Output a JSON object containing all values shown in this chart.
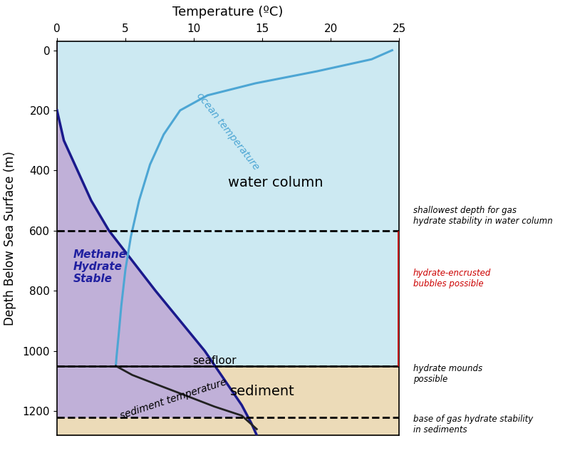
{
  "title": "Temperature (ºC)",
  "ylabel": "Depth Below Sea Surface (m)",
  "xlim": [
    0,
    25
  ],
  "ylim": [
    1280,
    -30
  ],
  "xticks": [
    0,
    5,
    10,
    15,
    20,
    25
  ],
  "yticks": [
    0,
    200,
    400,
    600,
    800,
    1000,
    1200
  ],
  "seafloor_depth": 1050,
  "hydrate_stability_depth_water": 600,
  "sediment_base_hydrate_depth": 1220,
  "water_column_color": "#cce9f2",
  "sediment_color": "#ecdbb8",
  "hydrate_stable_color": "#c0b0d8",
  "ocean_temp_color": "#4da6d4",
  "hydrate_curve_color": "#1a1a8c",
  "sediment_temp_color": "#222222",
  "red_line_color": "#cc0000",
  "hydrate_label_color": "#2020a0",
  "ocean_temp_x": [
    24.5,
    23.0,
    19.0,
    14.5,
    11.0,
    9.0,
    7.8,
    6.8,
    6.0,
    5.4,
    5.0,
    4.7,
    4.5,
    4.35,
    4.3
  ],
  "ocean_temp_y": [
    0,
    30,
    70,
    110,
    150,
    200,
    280,
    380,
    500,
    620,
    730,
    850,
    950,
    1020,
    1050
  ],
  "hydrate_curve_x": [
    0.0,
    0.5,
    1.5,
    2.5,
    3.8,
    5.5,
    7.2,
    9.0,
    10.8,
    12.3,
    13.5,
    14.2,
    14.6
  ],
  "hydrate_curve_y": [
    200,
    300,
    400,
    500,
    600,
    700,
    800,
    900,
    1000,
    1100,
    1180,
    1240,
    1280
  ],
  "sediment_temp_x": [
    4.3,
    5.5,
    7.2,
    9.5,
    11.5,
    13.5,
    14.6
  ],
  "sediment_temp_y": [
    1050,
    1080,
    1110,
    1150,
    1185,
    1215,
    1260
  ],
  "figsize": [
    8.0,
    6.43
  ],
  "dpi": 100
}
